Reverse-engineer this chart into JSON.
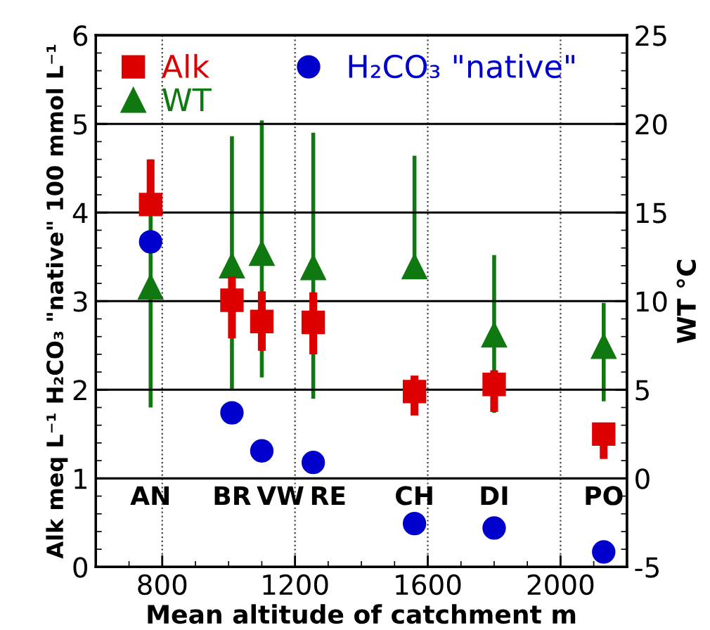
{
  "chart_data": {
    "type": "scatter",
    "xlabel": "Mean altitude of catchment m",
    "ylabel": "Alk meq L⁻¹ H₂CO₃ \"native\" 100 mmol L⁻¹",
    "y2label": "WT °C",
    "xlim": [
      600,
      2200
    ],
    "xticks": [
      800,
      1200,
      1600,
      2000
    ],
    "ylim": [
      0,
      6
    ],
    "yticks": [
      0,
      1,
      2,
      3,
      4,
      5,
      6
    ],
    "y2lim": [
      -5,
      25
    ],
    "y2ticks": [
      -5,
      0,
      5,
      10,
      15,
      20,
      25
    ],
    "grid": true,
    "legend": "top left",
    "series": [
      {
        "name": "Alk",
        "color": "#dd0000",
        "marker": "square",
        "x": [
          765,
          1010,
          1100,
          1255,
          1560,
          1800,
          2130
        ],
        "values": [
          4.09,
          3.01,
          2.77,
          2.76,
          1.98,
          2.06,
          1.5
        ],
        "errors": [
          [
            4.09,
            4.6
          ],
          [
            2.58,
            3.28
          ],
          [
            2.44,
            3.11
          ],
          [
            2.4,
            3.1
          ],
          [
            1.71,
            2.16
          ],
          [
            1.75,
            2.22
          ],
          [
            1.22,
            1.63
          ]
        ]
      },
      {
        "name": "WT",
        "color": "#107810",
        "marker": "triangle",
        "axis": "y2",
        "x": [
          765,
          1010,
          1100,
          1255,
          1560,
          1800,
          2130
        ],
        "values": [
          10.8,
          12.0,
          12.7,
          11.9,
          11.95,
          8.1,
          7.45
        ],
        "errors": [
          [
            4.0,
            18.0
          ],
          [
            5.0,
            19.3
          ],
          [
            5.7,
            20.2
          ],
          [
            4.5,
            19.5
          ],
          [
            11.95,
            18.2
          ],
          [
            3.7,
            12.6
          ],
          [
            4.35,
            9.9
          ]
        ]
      },
      {
        "name": "H₂CO₃ \"native\"",
        "color": "#0000cc",
        "marker": "circle",
        "x": [
          765,
          1010,
          1100,
          1255,
          1560,
          1800,
          2130
        ],
        "values": [
          3.67,
          1.74,
          1.31,
          1.18,
          0.49,
          0.44,
          0.17
        ]
      }
    ],
    "annotations": [
      "AN",
      "BR",
      "VW",
      "RE",
      "CH",
      "DI",
      "PO"
    ]
  }
}
